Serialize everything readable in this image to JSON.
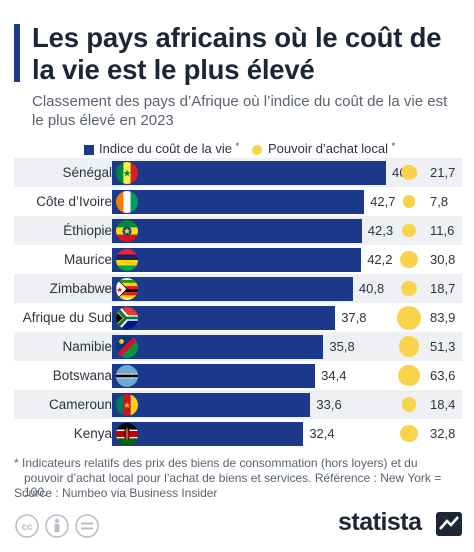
{
  "title": "Les pays africains où le coût de la vie est le plus élevé",
  "subtitle": "Classement des pays d’Afrique où l’indice du coût de la vie est le plus élevé en 2023",
  "legend": {
    "cost_label": "Indice du coût de la vie",
    "power_label": "Pouvoir d’achat local",
    "asterisk": "*"
  },
  "colors": {
    "bar": "#1b3a8c",
    "bubble": "#f9d44a",
    "stripe": "#eef0f3",
    "accent": "#1b3a8c"
  },
  "chart_data": {
    "type": "bar",
    "categories": [
      "Sénégal",
      "Côte d’Ivoire",
      "Éthiopie",
      "Maurice",
      "Zimbabwe",
      "Afrique du Sud",
      "Namibie",
      "Botswana",
      "Cameroun",
      "Kenya"
    ],
    "series": [
      {
        "name": "Indice du coût de la vie",
        "values": [
          46.4,
          42.7,
          42.3,
          42.2,
          40.8,
          37.8,
          35.8,
          34.4,
          33.6,
          32.4
        ],
        "labels": [
          "46,4",
          "42,7",
          "42,3",
          "42,2",
          "40,8",
          "37,8",
          "35,8",
          "34,4",
          "33,6",
          "32,4"
        ]
      },
      {
        "name": "Pouvoir d’achat local",
        "values": [
          21.7,
          7.8,
          11.6,
          30.8,
          18.7,
          83.9,
          51.3,
          63.6,
          18.4,
          32.8
        ],
        "labels": [
          "21,7",
          "7,8",
          "11,6",
          "30,8",
          "18,7",
          "83,9",
          "51,3",
          "63,6",
          "18,4",
          "32,8"
        ]
      }
    ],
    "flags": [
      "flag-senegal",
      "flag-cote-divoire",
      "flag-ethiopia",
      "flag-mauritius",
      "flag-zimbabwe",
      "flag-south-africa",
      "flag-namibia",
      "flag-botswana",
      "flag-cameroon",
      "flag-kenya"
    ]
  },
  "footnote": {
    "line1": "* Indicateurs relatifs des prix des biens de consommation (hors loyers) et du",
    "line2": "pouvoir d’achat local pour l’achat de biens et services. Référence : New York = 100."
  },
  "source": "Source : Numbeo via Business Insider",
  "brand": "statista",
  "license_icons": [
    "cc-icon",
    "attribution-icon",
    "no-derivatives-icon"
  ]
}
